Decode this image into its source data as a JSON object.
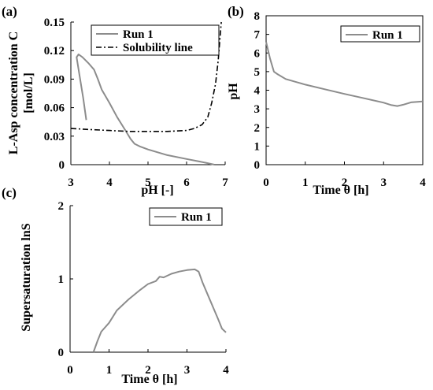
{
  "colors": {
    "series": "#8c8c8c",
    "solubility": "#000000",
    "axis": "#000000"
  },
  "chart_data": [
    {
      "panel_label": "(a)",
      "type": "line",
      "xlabel": "pH [-]",
      "ylabel_lines": [
        "L-Asp concentration C",
        "[mol/L]"
      ],
      "xlim": [
        3,
        7
      ],
      "ylim": [
        0,
        0.15
      ],
      "x_ticks": [
        "3",
        "4",
        "5",
        "6",
        "7"
      ],
      "y_ticks": [
        "0",
        "0.03",
        "0.06",
        "0.09",
        "0.12",
        "0.15"
      ],
      "legend": {
        "placement": "top-right",
        "entries": [
          "Run 1",
          "Solubility line"
        ]
      },
      "series": [
        {
          "name": "Run 1",
          "style": "solid",
          "color": "#8c8c8c",
          "points": [
            [
              3.4,
              0.047
            ],
            [
              3.32,
              0.07
            ],
            [
              3.22,
              0.095
            ],
            [
              3.15,
              0.113
            ],
            [
              3.2,
              0.116
            ],
            [
              3.3,
              0.113
            ],
            [
              3.45,
              0.107
            ],
            [
              3.6,
              0.1
            ],
            [
              3.7,
              0.09
            ],
            [
              3.8,
              0.079
            ],
            [
              4.0,
              0.065
            ],
            [
              4.2,
              0.05
            ],
            [
              4.4,
              0.037
            ],
            [
              4.55,
              0.027
            ],
            [
              4.65,
              0.022
            ],
            [
              4.8,
              0.019
            ],
            [
              5.0,
              0.016
            ],
            [
              5.5,
              0.01
            ],
            [
              6.0,
              0.006
            ],
            [
              6.5,
              0.002
            ],
            [
              6.72,
              0.0
            ]
          ]
        },
        {
          "name": "Solubility line",
          "style": "dash-dot",
          "color": "#000000",
          "points": [
            [
              3.0,
              0.038
            ],
            [
              3.5,
              0.037
            ],
            [
              4.0,
              0.036
            ],
            [
              4.5,
              0.035
            ],
            [
              5.0,
              0.035
            ],
            [
              5.5,
              0.035
            ],
            [
              6.0,
              0.036
            ],
            [
              6.2,
              0.038
            ],
            [
              6.4,
              0.042
            ],
            [
              6.55,
              0.05
            ],
            [
              6.65,
              0.065
            ],
            [
              6.75,
              0.085
            ],
            [
              6.82,
              0.11
            ],
            [
              6.88,
              0.14
            ],
            [
              6.9,
              0.15
            ]
          ]
        }
      ]
    },
    {
      "panel_label": "(b)",
      "type": "line",
      "xlabel": "Time θ [h]",
      "ylabel": "pH",
      "xlim": [
        0,
        4
      ],
      "ylim": [
        0,
        8
      ],
      "x_ticks": [
        "0",
        "1",
        "2",
        "3",
        "4"
      ],
      "y_ticks": [
        "0",
        "1",
        "2",
        "3",
        "4",
        "5",
        "6",
        "7",
        "8"
      ],
      "legend": {
        "placement": "top-right",
        "entries": [
          "Run 1"
        ]
      },
      "series": [
        {
          "name": "Run 1",
          "style": "solid",
          "color": "#8c8c8c",
          "points": [
            [
              0.0,
              6.6
            ],
            [
              0.1,
              5.7
            ],
            [
              0.2,
              5.0
            ],
            [
              0.3,
              4.85
            ],
            [
              0.5,
              4.6
            ],
            [
              1.0,
              4.3
            ],
            [
              1.5,
              4.05
            ],
            [
              2.0,
              3.8
            ],
            [
              2.5,
              3.57
            ],
            [
              3.0,
              3.33
            ],
            [
              3.2,
              3.2
            ],
            [
              3.35,
              3.15
            ],
            [
              3.5,
              3.22
            ],
            [
              3.7,
              3.35
            ],
            [
              4.0,
              3.4
            ]
          ]
        }
      ]
    },
    {
      "panel_label": "(c)",
      "type": "line",
      "xlabel": "Time θ [h]",
      "ylabel": "Supersaturation lnS",
      "xlim": [
        0,
        4
      ],
      "ylim": [
        0,
        2
      ],
      "x_ticks": [
        "0",
        "1",
        "2",
        "3",
        "4"
      ],
      "y_ticks": [
        "0",
        "1",
        "2"
      ],
      "legend": {
        "placement": "top-right",
        "entries": [
          "Run 1"
        ]
      },
      "series": [
        {
          "name": "Run 1",
          "style": "solid",
          "color": "#8c8c8c",
          "points": [
            [
              0.6,
              0.0
            ],
            [
              0.7,
              0.15
            ],
            [
              0.8,
              0.28
            ],
            [
              1.0,
              0.4
            ],
            [
              1.2,
              0.57
            ],
            [
              1.5,
              0.72
            ],
            [
              1.8,
              0.85
            ],
            [
              2.0,
              0.93
            ],
            [
              2.2,
              0.97
            ],
            [
              2.3,
              1.03
            ],
            [
              2.4,
              1.02
            ],
            [
              2.6,
              1.07
            ],
            [
              2.8,
              1.1
            ],
            [
              3.0,
              1.12
            ],
            [
              3.2,
              1.13
            ],
            [
              3.3,
              1.1
            ],
            [
              3.4,
              0.95
            ],
            [
              3.6,
              0.7
            ],
            [
              3.8,
              0.45
            ],
            [
              3.9,
              0.32
            ],
            [
              4.0,
              0.27
            ]
          ]
        }
      ]
    }
  ]
}
